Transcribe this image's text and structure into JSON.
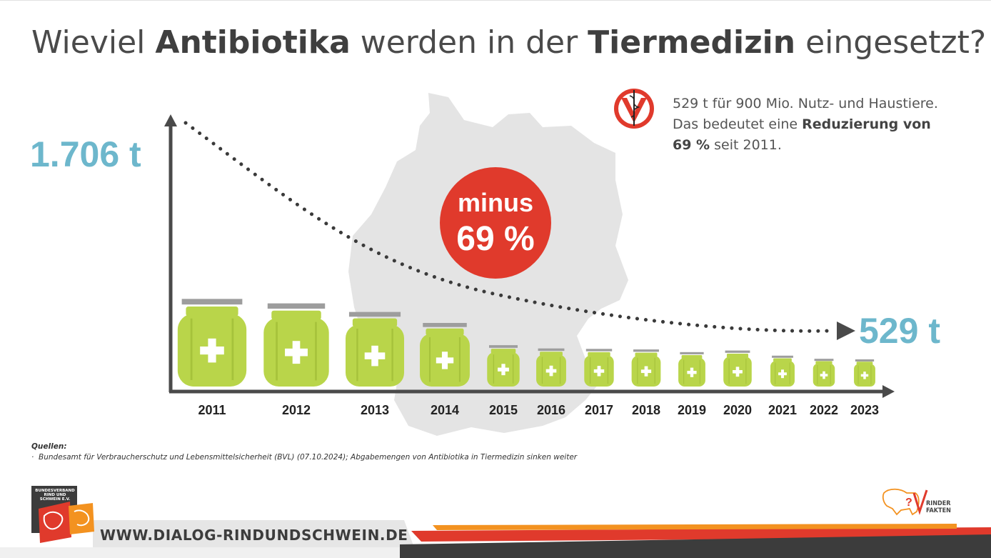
{
  "title": {
    "part1": "Wieviel ",
    "bold1": "Antibiotika",
    "part2": " werden in der ",
    "bold2": "Tiermedizin",
    "part3": " eingesetzt?"
  },
  "start_label": "1.706 t",
  "end_label": "529 t",
  "badge": {
    "line1": "minus",
    "line2": "69 %"
  },
  "stat_text": {
    "line1": "529 t für 900 Mio. Nutz- und Haustiere.",
    "line2_prefix": "Das bedeutet eine ",
    "line2_bold": "Reduzierung von",
    "line3_bold": "69 %",
    "line3_suffix": " seit 2011."
  },
  "sources": {
    "heading": "Quellen:",
    "item": "Bundesamt für Verbraucherschutz und Lebensmittelsicherheit (BVL) (07.10.2024); Abgabemengen von Antibiotika in Tiermedizin sinken weiter"
  },
  "footer": {
    "website": "WWW.DIALOG-RINDUNDSCHWEIN.DE",
    "logo_left_text": "BUNDESVERBAND RIND UND SCHWEIN E.V.",
    "logo_right_line1": "RINDER",
    "logo_right_line2": "FAKTEN"
  },
  "colors": {
    "jar_green": "#b9d54a",
    "jar_dark": "#a6c23b",
    "lid_gray": "#9d9d9d",
    "accent_blue": "#6db7cc",
    "badge_red": "#e03a2c",
    "map_gray": "#e4e4e4",
    "axis": "#4a4a4a"
  },
  "icons": [
    "vet-caduceus-icon",
    "medicine-jar-icon",
    "plus-cross-icon",
    "arrow-right-icon",
    "arrow-up-icon"
  ],
  "chart_data": {
    "type": "bar",
    "title": "Wieviel Antibiotika werden in der Tiermedizin eingesetzt?",
    "categories": [
      "2011",
      "2012",
      "2013",
      "2014",
      "2015",
      "2016",
      "2017",
      "2018",
      "2019",
      "2020",
      "2021",
      "2022",
      "2023"
    ],
    "values": [
      1706,
      1619,
      1452,
      1238,
      805,
      742,
      733,
      722,
      670,
      701,
      601,
      540,
      529
    ],
    "unit": "t",
    "xlabel": "",
    "ylabel": "",
    "grid": false,
    "legend": "none"
  }
}
